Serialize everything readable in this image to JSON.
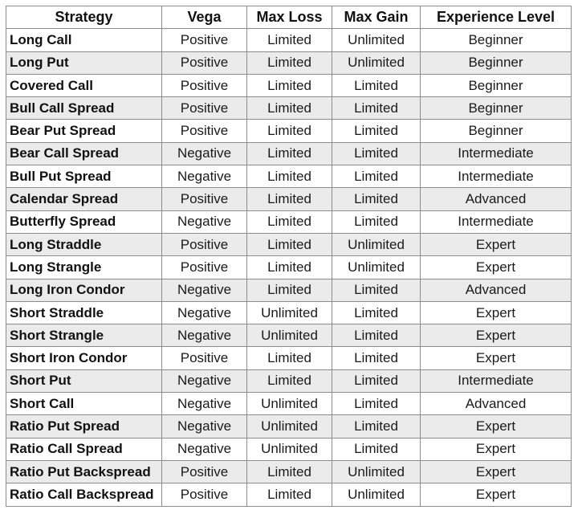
{
  "table": {
    "headers": [
      "Strategy",
      "Vega",
      "Max Loss",
      "Max Gain",
      "Experience Level"
    ],
    "rows": [
      [
        "Long Call",
        "Positive",
        "Limited",
        "Unlimited",
        "Beginner"
      ],
      [
        "Long Put",
        "Positive",
        "Limited",
        "Unlimited",
        "Beginner"
      ],
      [
        "Covered Call",
        "Positive",
        "Limited",
        "Limited",
        "Beginner"
      ],
      [
        "Bull Call Spread",
        "Positive",
        "Limited",
        "Limited",
        "Beginner"
      ],
      [
        "Bear Put Spread",
        "Positive",
        "Limited",
        "Limited",
        "Beginner"
      ],
      [
        "Bear Call Spread",
        "Negative",
        "Limited",
        "Limited",
        "Intermediate"
      ],
      [
        "Bull Put Spread",
        "Negative",
        "Limited",
        "Limited",
        "Intermediate"
      ],
      [
        "Calendar Spread",
        "Positive",
        "Limited",
        "Limited",
        "Advanced"
      ],
      [
        "Butterfly Spread",
        "Negative",
        "Limited",
        "Limited",
        "Intermediate"
      ],
      [
        "Long Straddle",
        "Positive",
        "Limited",
        "Unlimited",
        "Expert"
      ],
      [
        "Long Strangle",
        "Positive",
        "Limited",
        "Unlimited",
        "Expert"
      ],
      [
        "Long Iron Condor",
        "Negative",
        "Limited",
        "Limited",
        "Advanced"
      ],
      [
        "Short Straddle",
        "Negative",
        "Unlimited",
        "Limited",
        "Expert"
      ],
      [
        "Short Strangle",
        "Negative",
        "Unlimited",
        "Limited",
        "Expert"
      ],
      [
        "Short Iron Condor",
        "Positive",
        "Limited",
        "Limited",
        "Expert"
      ],
      [
        "Short Put",
        "Negative",
        "Limited",
        "Limited",
        "Intermediate"
      ],
      [
        "Short Call",
        "Negative",
        "Unlimited",
        "Limited",
        "Advanced"
      ],
      [
        "Ratio Put Spread",
        "Negative",
        "Unlimited",
        "Limited",
        "Expert"
      ],
      [
        "Ratio Call Spread",
        "Negative",
        "Unlimited",
        "Limited",
        "Expert"
      ],
      [
        "Ratio Put Backspread",
        "Positive",
        "Limited",
        "Unlimited",
        "Expert"
      ],
      [
        "Ratio Call Backspread",
        "Positive",
        "Limited",
        "Unlimited",
        "Expert"
      ]
    ]
  }
}
